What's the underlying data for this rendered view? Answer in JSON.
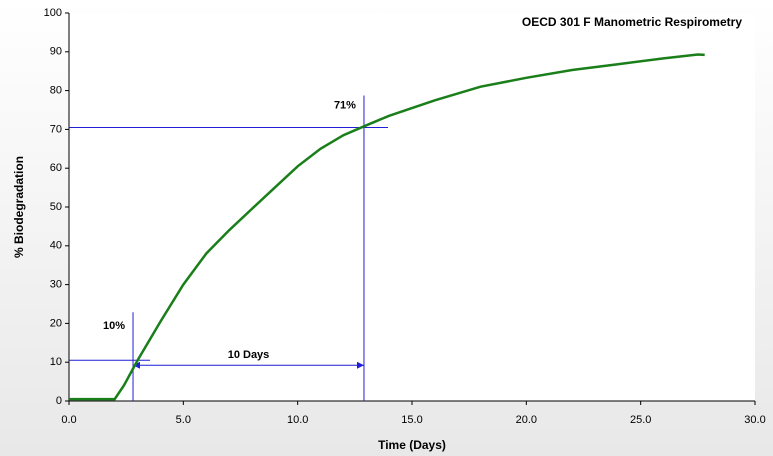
{
  "chart_data": {
    "type": "line",
    "title": "OECD 301 F Manometric Respirometry",
    "x_label": "Time (Days)",
    "y_label": "% Biodegradation",
    "x": [
      0,
      2,
      2.4,
      3,
      4,
      5,
      6,
      7,
      8,
      9,
      10,
      11,
      12,
      12.9,
      14,
      16,
      18,
      20,
      22,
      24,
      26,
      27.5,
      27.8
    ],
    "series": [
      {
        "color": "#1a7f1a",
        "values": [
          0.5,
          0.5,
          4,
          10.5,
          20.5,
          30,
          38,
          44,
          49.5,
          55,
          60.5,
          65,
          68.5,
          70.8,
          73.5,
          77.5,
          81,
          83.3,
          85.3,
          86.8,
          88.3,
          89.3,
          89.2
        ]
      }
    ],
    "xlim": [
      0,
      30
    ],
    "ylim": [
      0,
      100
    ],
    "xticks": [
      {
        "value": 0,
        "label": "0.0"
      },
      {
        "value": 5,
        "label": "5.0"
      },
      {
        "value": 10,
        "label": "10.0"
      },
      {
        "value": 15,
        "label": "15.0"
      },
      {
        "value": 20,
        "label": "20.0"
      },
      {
        "value": 25,
        "label": "25.0"
      },
      {
        "value": 30,
        "label": "30.0"
      }
    ],
    "yticks": [
      0,
      10,
      20,
      30,
      40,
      50,
      60,
      70,
      80,
      90,
      100
    ],
    "annotation_color": "#1f1fd6",
    "markers": [
      {
        "label": "10%",
        "x": 2.8,
        "y": 10.5
      },
      {
        "label": "71%",
        "x": 12.9,
        "y": 70.5
      }
    ],
    "interval": {
      "label": "10 Days",
      "from": 2.8,
      "to": 12.9
    }
  }
}
